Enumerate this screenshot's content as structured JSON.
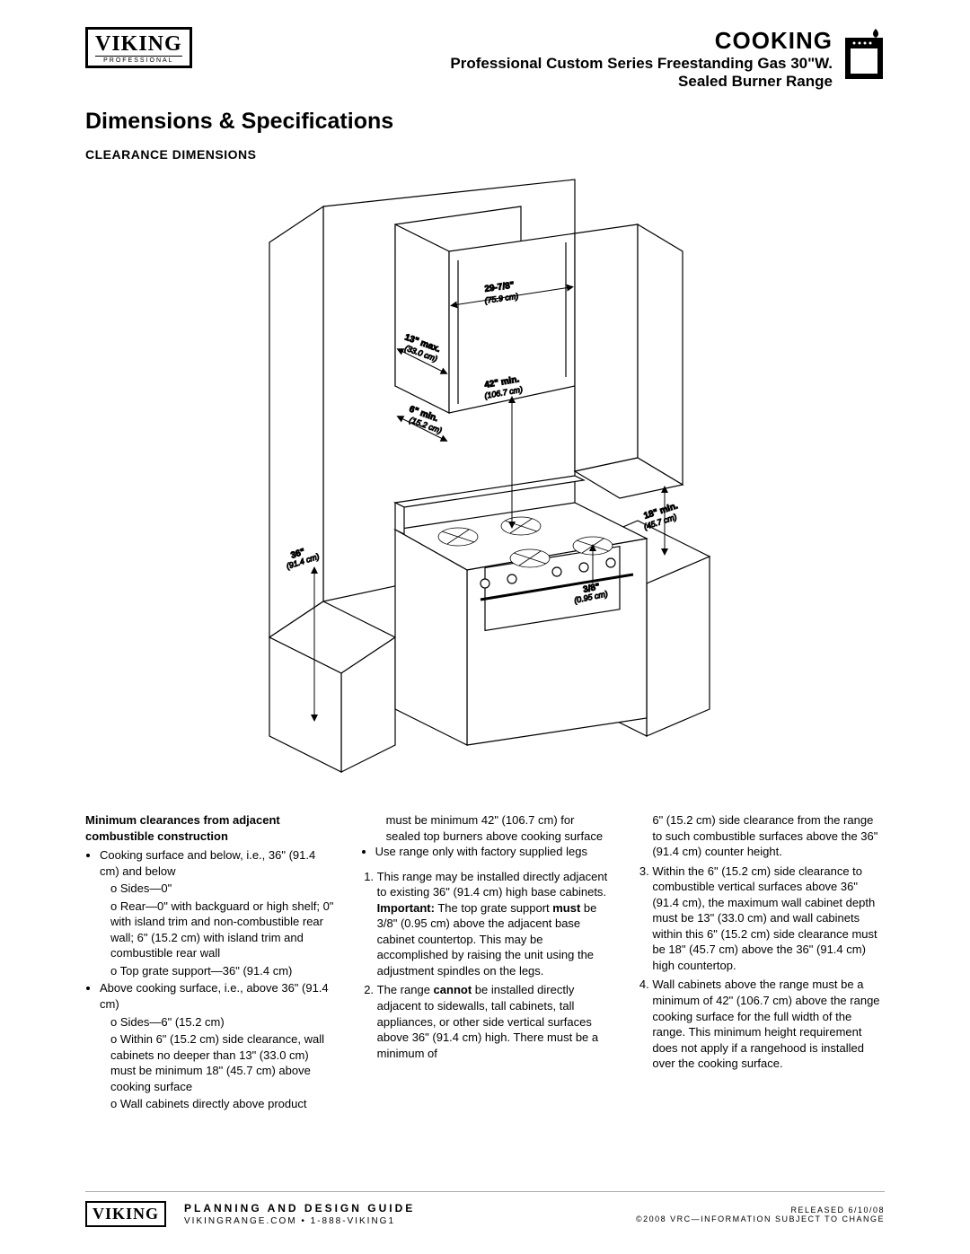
{
  "brand": {
    "name": "VIKING",
    "subline": "PROFESSIONAL"
  },
  "header": {
    "category": "COOKING",
    "product_line1": "Professional Custom Series Freestanding Gas 30\"W.",
    "product_line2": "Sealed Burner Range"
  },
  "section_title": "Dimensions & Specifications",
  "subsection_title": "CLEARANCE DIMENSIONS",
  "diagram": {
    "labels": {
      "width": {
        "main": "29-7/8\"",
        "sub": "(75.9 cm)"
      },
      "depth_max": {
        "main": "13\" max.",
        "sub": "(33.0 cm)"
      },
      "height_min": {
        "main": "42\" min.",
        "sub": "(106.7 cm)"
      },
      "side_min": {
        "main": "6\" min.",
        "sub": "(15.2 cm)"
      },
      "side_cab": {
        "main": "18\" min.",
        "sub": "(45.7 cm)"
      },
      "counter_h": {
        "main": "36\"",
        "sub": "(91.4 cm)"
      },
      "grate": {
        "main": "3/8\"",
        "sub": "(0.95 cm)"
      }
    },
    "colors": {
      "stroke": "#000000",
      "fill_light": "#ffffff",
      "fill_shade": "#f0f0f0"
    }
  },
  "columns": {
    "col1": {
      "heading": "Minimum clearances from adjacent combustible construction",
      "bullets": [
        {
          "text": "Cooking surface and below, i.e., 36\" (91.4 cm) and below",
          "sub": [
            "Sides—0\"",
            "Rear—0\" with backguard or high shelf; 0\" with island trim and non-combustible rear wall; 6\" (15.2 cm) with island trim and combustible rear wall",
            "Top grate support—36\" (91.4 cm)"
          ]
        },
        {
          "text": "Above cooking surface, i.e., above 36\" (91.4 cm)",
          "sub": [
            "Sides—6\" (15.2 cm)",
            "Within 6\" (15.2 cm) side clearance, wall cabinets no deeper than 13\" (33.0 cm) must be minimum 18\" (45.7 cm) above cooking surface",
            "Wall cabinets directly above product"
          ]
        }
      ]
    },
    "col2": {
      "continuation": "must be minimum 42\" (106.7 cm) for sealed top burners above cooking surface",
      "bullet": "Use range only with factory supplied legs",
      "numbered": [
        "This range may be installed directly adjacent to existing 36\" (91.4 cm) high base cabinets. <b>Important:</b> The top grate support <b>must</b> be 3/8\" (0.95 cm) above the adjacent base cabinet countertop. This may be accomplished by raising the unit using the adjustment spindles on the legs.",
        "The range <b>cannot</b> be installed directly adjacent to sidewalls, tall cabinets, tall appliances, or other side vertical surfaces above 36\" (91.4 cm) high. There must be a minimum of"
      ]
    },
    "col3": {
      "continuation": "6\" (15.2 cm) side clearance from the range to such combustible surfaces above the 36\" (91.4 cm) counter height.",
      "numbered": [
        {
          "n": 3,
          "text": "Within the 6\" (15.2 cm) side clearance to combustible vertical surfaces above 36\" (91.4 cm), the maximum wall cabinet depth must be 13\" (33.0 cm) and wall cabinets within this 6\" (15.2 cm) side clearance must be 18\" (45.7 cm) above the 36\" (91.4 cm) high countertop."
        },
        {
          "n": 4,
          "text": "Wall cabinets above the range must be a minimum of 42\" (106.7 cm) above the range cooking surface for the full width of the range. This minimum height requirement does not apply if a rangehood is installed over the cooking surface."
        }
      ]
    }
  },
  "footer": {
    "guide": "PLANNING AND DESIGN GUIDE",
    "contact": "VIKINGRANGE.COM    •    1-888-VIKING1",
    "released": "RELEASED 6/10/08",
    "copyright": "©2008 VRC—INFORMATION SUBJECT TO CHANGE"
  }
}
